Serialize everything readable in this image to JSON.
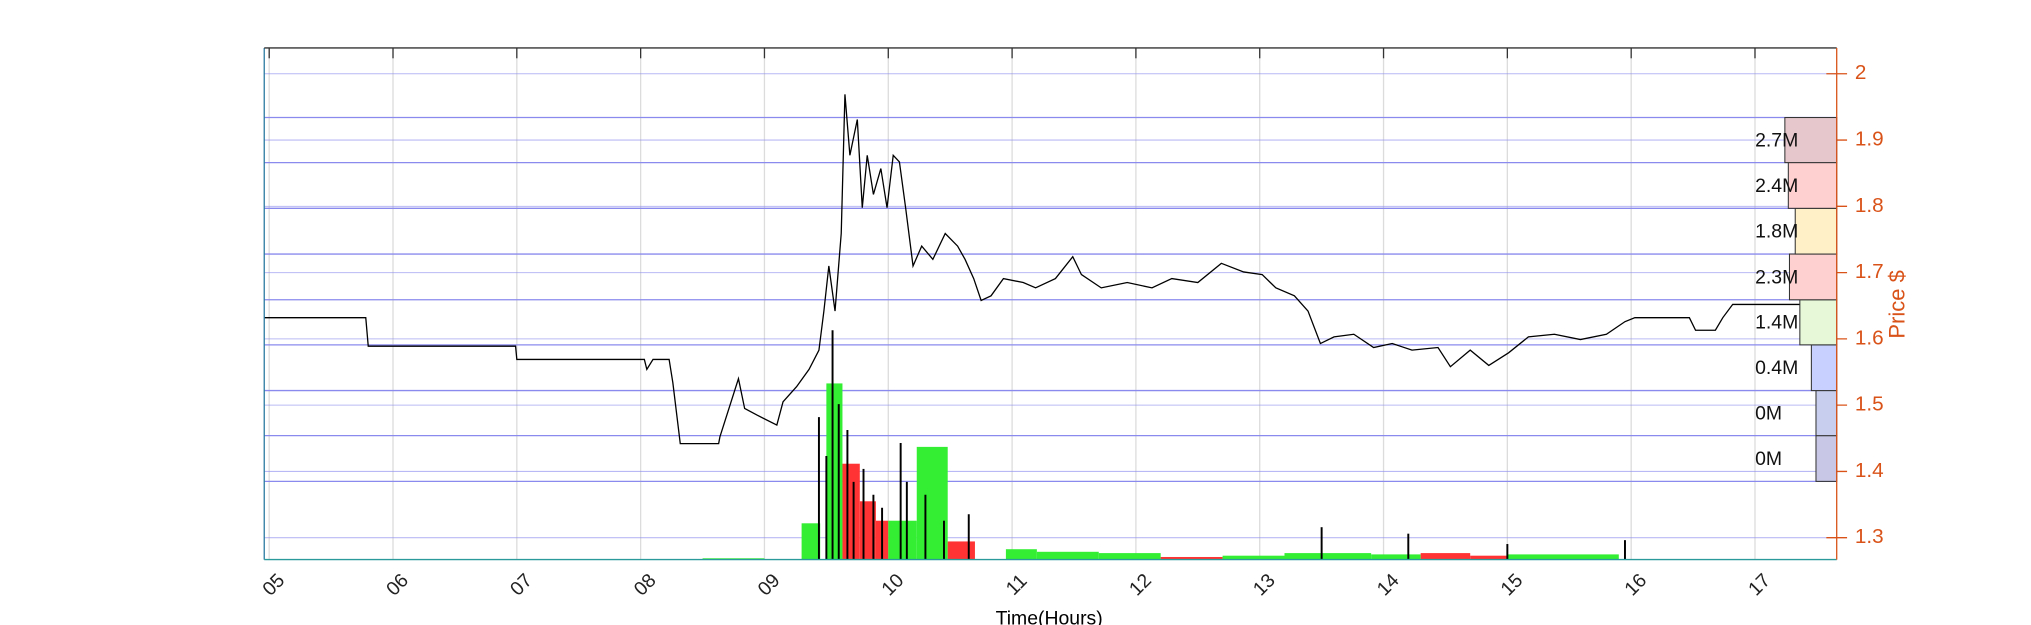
{
  "chart_data": {
    "type": "price-volume",
    "xlabel": "Time(Hours)",
    "ylabel": "Price $",
    "xlim": [
      4.96,
      17.66
    ],
    "xticks": [
      {
        "value": 5,
        "label": "05"
      },
      {
        "value": 6,
        "label": "06"
      },
      {
        "value": 7,
        "label": "07"
      },
      {
        "value": 8,
        "label": "08"
      },
      {
        "value": 9,
        "label": "09"
      },
      10,
      11,
      12,
      13,
      14,
      15,
      16,
      17
    ],
    "ylim": [
      1.267,
      2.039
    ],
    "yticks": [
      1.3,
      1.4,
      1.5,
      1.6,
      1.7,
      1.8,
      1.9,
      2
    ],
    "grid": true,
    "axis_color": "#d95319",
    "x": [
      4.96,
      5.78,
      5.8,
      6.99,
      7.0,
      8.03,
      8.05,
      8.1,
      8.23,
      8.26,
      8.32,
      8.63,
      8.64,
      8.79,
      8.84,
      8.94,
      9.1,
      9.15,
      9.26,
      9.36,
      9.44,
      9.48,
      9.52,
      9.57,
      9.62,
      9.65,
      9.69,
      9.75,
      9.79,
      9.83,
      9.88,
      9.94,
      9.99,
      10.04,
      10.09,
      10.14,
      10.2,
      10.27,
      10.36,
      10.46,
      10.56,
      10.62,
      10.69,
      10.75,
      10.83,
      10.93,
      11.09,
      11.19,
      11.35,
      11.49,
      11.56,
      11.72,
      11.93,
      12.13,
      12.29,
      12.5,
      12.69,
      12.87,
      13.02,
      13.13,
      13.28,
      13.39,
      13.49,
      13.6,
      13.76,
      13.92,
      14.07,
      14.23,
      14.44,
      14.54,
      14.7,
      14.85,
      15.01,
      15.17,
      15.38,
      15.59,
      15.8,
      15.95,
      16.03,
      16.47,
      16.52,
      16.68,
      16.74,
      16.82,
      17.47
    ],
    "series": [
      {
        "color": "#000000",
        "values": [
          1.632,
          1.632,
          1.589,
          1.589,
          1.569,
          1.569,
          1.554,
          1.569,
          1.569,
          1.534,
          1.442,
          1.442,
          1.452,
          1.54,
          1.495,
          1.485,
          1.47,
          1.505,
          1.528,
          1.554,
          1.583,
          1.642,
          1.71,
          1.642,
          1.759,
          1.969,
          1.877,
          1.931,
          1.798,
          1.877,
          1.818,
          1.857,
          1.798,
          1.877,
          1.867,
          1.798,
          1.71,
          1.74,
          1.72,
          1.759,
          1.74,
          1.72,
          1.691,
          1.658,
          1.665,
          1.691,
          1.685,
          1.677,
          1.691,
          1.724,
          1.697,
          1.677,
          1.685,
          1.677,
          1.691,
          1.685,
          1.714,
          1.701,
          1.697,
          1.677,
          1.665,
          1.642,
          1.593,
          1.603,
          1.607,
          1.587,
          1.593,
          1.583,
          1.587,
          1.558,
          1.583,
          1.56,
          1.579,
          1.603,
          1.607,
          1.599,
          1.607,
          1.626,
          1.632,
          1.632,
          1.613,
          1.613,
          1.632,
          1.652,
          1.652
        ]
      }
    ],
    "volume": {
      "y3lim": [
        0,
        395
      ],
      "x_start": [
        8.5,
        9.3,
        9.5,
        9.63,
        9.77,
        9.9,
        10.0,
        10.23,
        10.48,
        10.95,
        11.2,
        11.7,
        12.2,
        12.7,
        13.2,
        13.9,
        14.3,
        14.7,
        15.0
      ],
      "x_end": [
        9.0,
        9.45,
        9.63,
        9.77,
        9.9,
        10.0,
        10.23,
        10.48,
        10.7,
        11.2,
        11.7,
        12.2,
        12.7,
        13.2,
        13.9,
        14.3,
        14.7,
        15.0,
        15.9
      ],
      "values": [
        1,
        28,
        136,
        74,
        45,
        30,
        30,
        87,
        14,
        8,
        6,
        5,
        2,
        3,
        5,
        4,
        5,
        3,
        4
      ],
      "colors": [
        "#33ee33",
        "#33ee33",
        "#33ee33",
        "#ff3333",
        "#ff3333",
        "#ff3333",
        "#33ee33",
        "#33ee33",
        "#ff3333",
        "#33ee33",
        "#33ee33",
        "#33ee33",
        "#ff3333",
        "#33ee33",
        "#33ee33",
        "#33ee33",
        "#ff3333",
        "#ff3333",
        "#33ee33"
      ],
      "spikes_x": [
        9.44,
        9.5,
        9.55,
        9.6,
        9.67,
        9.72,
        9.8,
        9.88,
        9.95,
        10.1,
        10.15,
        10.3,
        10.45,
        10.65,
        13.5,
        14.2,
        15.0,
        15.95
      ],
      "spikes": [
        110,
        80,
        177,
        120,
        100,
        60,
        70,
        50,
        40,
        90,
        60,
        50,
        30,
        35,
        25,
        20,
        12,
        15
      ]
    },
    "profile": {
      "edges": [
        1.385,
        1.454,
        1.522,
        1.591,
        1.659,
        1.728,
        1.797,
        1.866,
        1.934
      ],
      "values": [
        0,
        0,
        0.4,
        1.4,
        2.3,
        1.8,
        2.4,
        2.7
      ],
      "value_labels": [
        "0M",
        "0M",
        "0.4M",
        "1.4M",
        "2.3M",
        "1.8M",
        "2.4M",
        "2.7M"
      ],
      "colors": [
        "#c8c8e6",
        "#c8cfee",
        "#c8d0ff",
        "#e6f8d8",
        "#ffd0d0",
        "#fff0c8",
        "#ffd0d0",
        "#e6c8cc"
      ]
    }
  }
}
